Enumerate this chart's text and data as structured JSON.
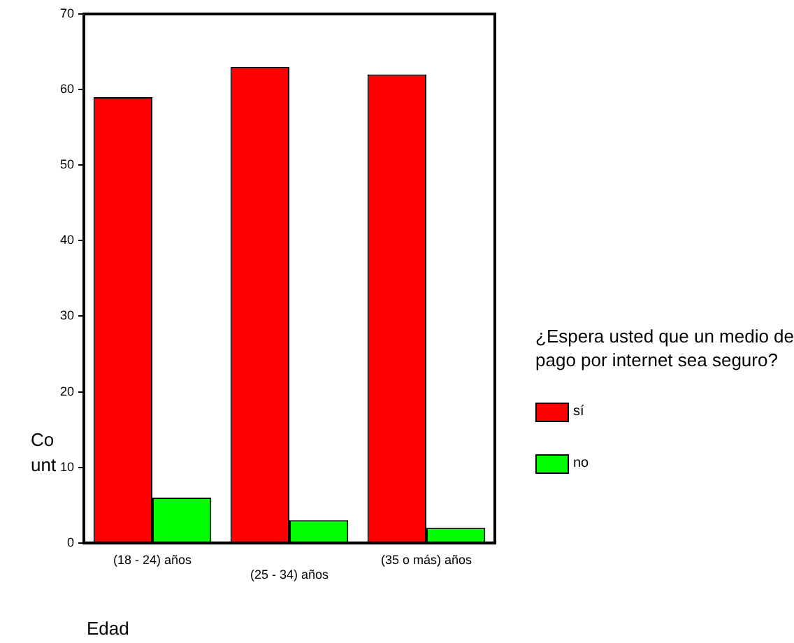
{
  "chart_data": {
    "type": "bar",
    "xlabel": "Edad",
    "ylabel": "Count",
    "legend_title": "¿Espera usted que un medio de pago por internet sea seguro?",
    "categories": [
      "(18 - 24) años",
      "(25 - 34) años",
      "(35 o más) años"
    ],
    "series": [
      {
        "name": "sí",
        "color": "#ff0000",
        "values": [
          59,
          63,
          62
        ]
      },
      {
        "name": "no",
        "color": "#00ff00",
        "values": [
          6,
          3,
          2
        ]
      }
    ],
    "ylim": [
      0,
      70
    ],
    "yticks": [
      0,
      10,
      20,
      30,
      40,
      50,
      60,
      70
    ],
    "grid": false,
    "legend": "right"
  }
}
